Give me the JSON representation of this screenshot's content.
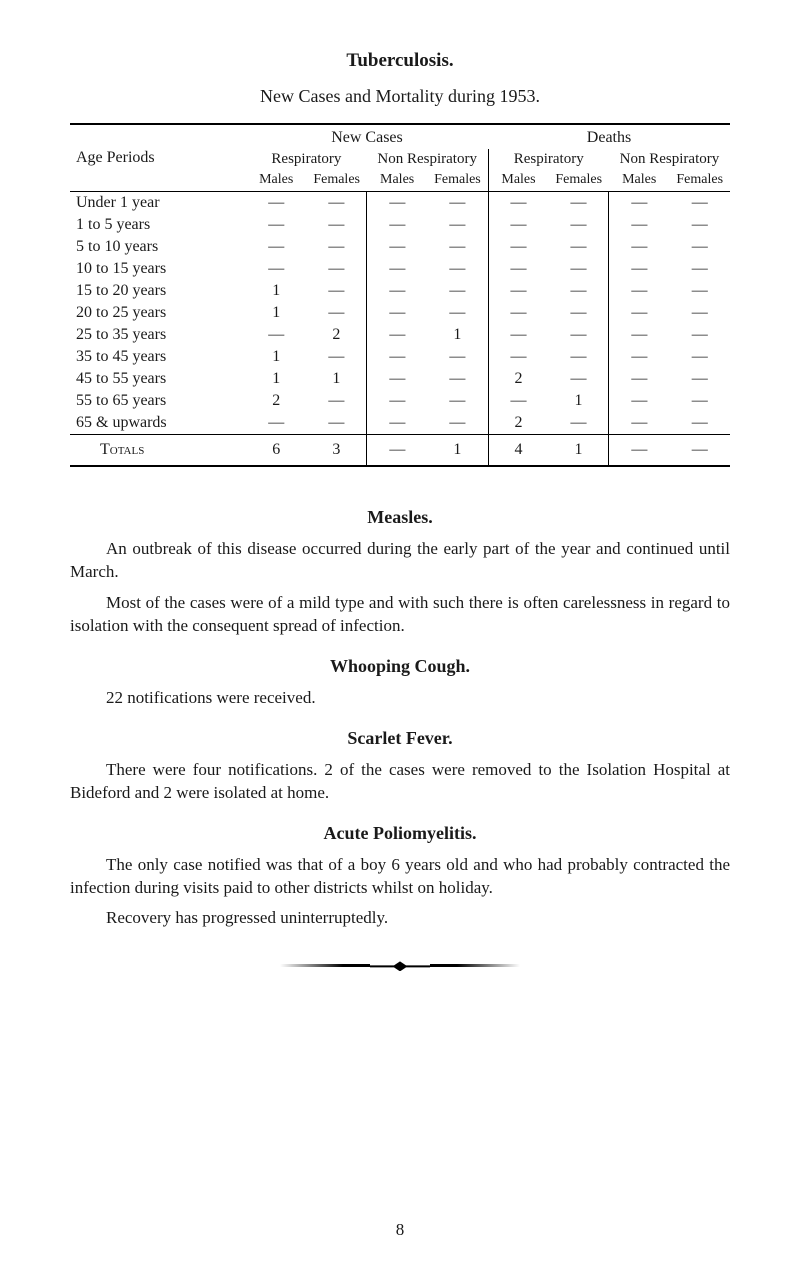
{
  "page": {
    "title": "Tuberculosis.",
    "subtitle": "New Cases and Mortality during 1953.",
    "page_number": "8"
  },
  "table": {
    "header_groups": {
      "new_cases": "New Cases",
      "deaths": "Deaths"
    },
    "col_label_age": "Age Periods",
    "sub_headers": {
      "resp": "Respiratory",
      "nonresp": "Non Respiratory"
    },
    "sub_sub": {
      "males": "Males",
      "females": "Females"
    },
    "rows": [
      {
        "age": "Under 1 year",
        "v": [
          "—",
          "—",
          "—",
          "—",
          "—",
          "—",
          "—",
          "—"
        ]
      },
      {
        "age": "1 to 5 years",
        "v": [
          "—",
          "—",
          "—",
          "—",
          "—",
          "—",
          "—",
          "—"
        ]
      },
      {
        "age": "5 to 10 years",
        "v": [
          "—",
          "—",
          "—",
          "—",
          "—",
          "—",
          "—",
          "—"
        ]
      },
      {
        "age": "10 to 15 years",
        "v": [
          "—",
          "—",
          "—",
          "—",
          "—",
          "—",
          "—",
          "—"
        ]
      },
      {
        "age": "15 to 20 years",
        "v": [
          "1",
          "—",
          "—",
          "—",
          "—",
          "—",
          "—",
          "—"
        ]
      },
      {
        "age": "20 to 25 years",
        "v": [
          "1",
          "—",
          "—",
          "—",
          "—",
          "—",
          "—",
          "—"
        ]
      },
      {
        "age": "25 to 35 years",
        "v": [
          "—",
          "2",
          "—",
          "1",
          "—",
          "—",
          "—",
          "—"
        ]
      },
      {
        "age": "35 to 45 years",
        "v": [
          "1",
          "—",
          "—",
          "—",
          "—",
          "—",
          "—",
          "—"
        ]
      },
      {
        "age": "45 to 55 years",
        "v": [
          "1",
          "1",
          "—",
          "—",
          "2",
          "—",
          "—",
          "—"
        ]
      },
      {
        "age": "55 to 65 years",
        "v": [
          "2",
          "—",
          "—",
          "—",
          "—",
          "1",
          "—",
          "—"
        ]
      },
      {
        "age": "65 & upwards",
        "v": [
          "—",
          "—",
          "—",
          "—",
          "2",
          "—",
          "—",
          "—"
        ]
      }
    ],
    "totals": {
      "label": "Totals",
      "v": [
        "6",
        "3",
        "—",
        "1",
        "4",
        "1",
        "—",
        "—"
      ]
    }
  },
  "sections": {
    "measles": {
      "heading": "Measles.",
      "p1": "An outbreak of this disease occurred during the early part of the year and continued until March.",
      "p2": "Most of the cases were of a mild type and with such there is often carelessness in regard to isolation with the consequent spread of infection."
    },
    "whooping": {
      "heading": "Whooping Cough.",
      "p1": "22 notifications were received."
    },
    "scarlet": {
      "heading": "Scarlet Fever.",
      "p1": "There were four notifications.   2 of the cases were removed to the Isolation Hospital at Bideford and 2 were isolated at home."
    },
    "polio": {
      "heading": "Acute Poliomyelitis.",
      "p1": "The only case notified was that of a boy 6 years old and who had probably contracted the infection during visits paid to other districts whilst on holiday.",
      "p2": "Recovery has progressed uninterruptedly."
    }
  },
  "style": {
    "background": "#ffffff",
    "text_color": "#1a1a1a",
    "rule_color": "#000000",
    "font_family": "Times New Roman",
    "title_fontsize": 19,
    "body_fontsize": 17,
    "table_fontsize": 16
  }
}
